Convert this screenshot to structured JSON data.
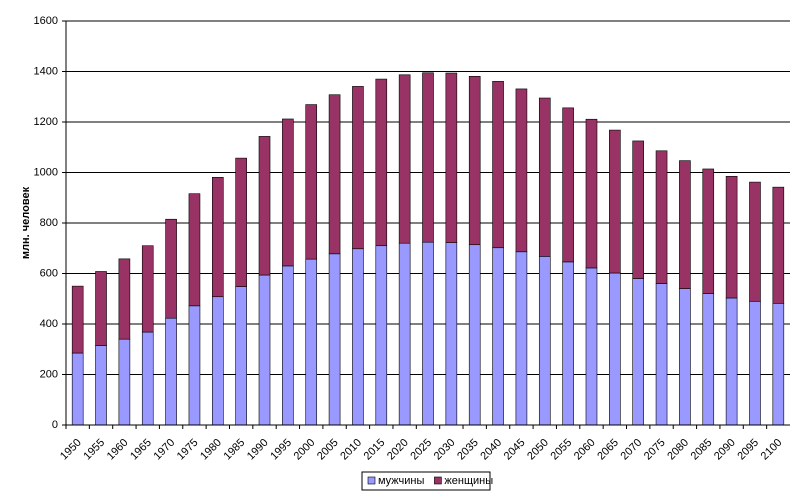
{
  "chart_data": {
    "type": "stacked_bar",
    "y_label": "млн. человек",
    "categories": [
      "1950",
      "1955",
      "1960",
      "1965",
      "1970",
      "1975",
      "1980",
      "1985",
      "1990",
      "1995",
      "2000",
      "2005",
      "2010",
      "2015",
      "2020",
      "2025",
      "2030",
      "2035",
      "2040",
      "2045",
      "2050",
      "2055",
      "2060",
      "2065",
      "2070",
      "2075",
      "2080",
      "2085",
      "2090",
      "2095",
      "2100"
    ],
    "series": [
      {
        "name": "мужчины",
        "color": "#9999ff",
        "values": [
          285,
          315,
          340,
          368,
          423,
          472,
          508,
          548,
          594,
          630,
          657,
          678,
          698,
          710,
          720,
          724,
          722,
          714,
          702,
          686,
          668,
          646,
          622,
          602,
          580,
          560,
          540,
          521,
          503,
          490,
          482
        ]
      },
      {
        "name": "женщины",
        "color": "#993366",
        "values": [
          265,
          293,
          318,
          342,
          392,
          444,
          473,
          509,
          549,
          582,
          612,
          630,
          643,
          660,
          667,
          671,
          672,
          667,
          659,
          645,
          627,
          610,
          589,
          566,
          545,
          526,
          507,
          493,
          482,
          472,
          460
        ]
      }
    ],
    "ylim": [
      0,
      1600
    ],
    "yticks": [
      0,
      200,
      400,
      600,
      800,
      1000,
      1200,
      1400,
      1600
    ],
    "grid": true,
    "legend": "bottom"
  }
}
